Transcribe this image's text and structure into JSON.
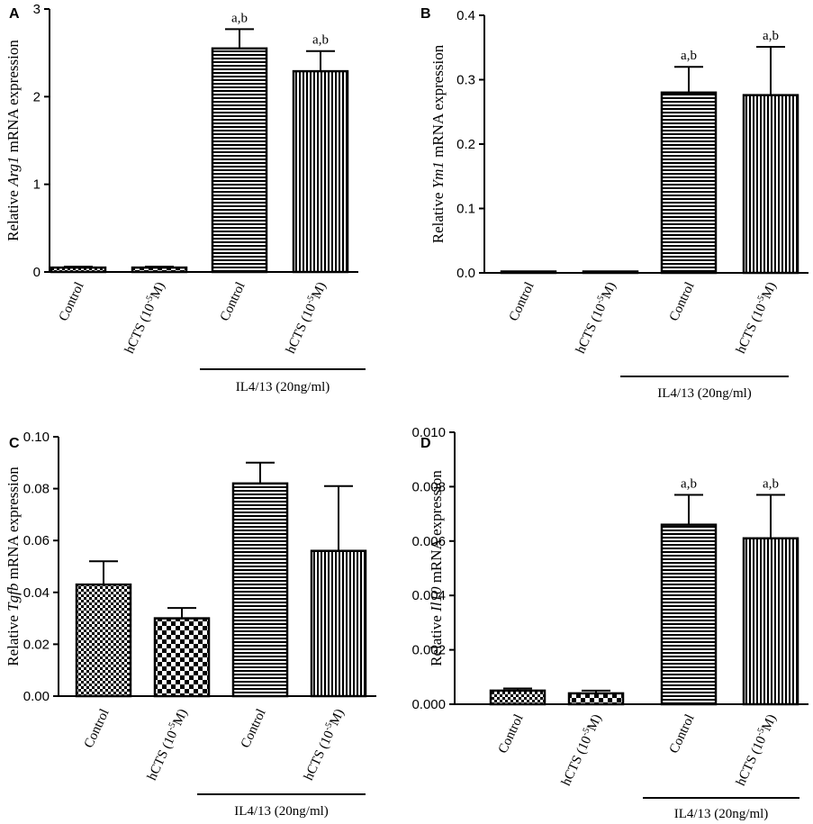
{
  "chart_data": [
    {
      "type": "bar",
      "panel_letter": "A",
      "ylabel_prefix": "Relative ",
      "ylabel_gene": "Arg1",
      "ylabel_suffix": " mRNA expression",
      "ylim": [
        0,
        3
      ],
      "yticks": [
        "0",
        "1",
        "2",
        "3"
      ],
      "yticks_values": [
        0,
        1,
        2,
        3
      ],
      "categories": [
        "Control",
        "hCTS (10",
        "Control",
        "hCTS (10"
      ],
      "category_sup": [
        "",
        "-5",
        "",
        "-5"
      ],
      "category_tail": [
        "",
        "M)",
        "",
        "M)"
      ],
      "values": [
        0.05,
        0.05,
        2.55,
        2.29
      ],
      "errors": [
        0.01,
        0.01,
        0.22,
        0.23
      ],
      "annotations": [
        "",
        "",
        "a,b",
        "a,b"
      ],
      "patterns": [
        "checker-fine",
        "checker",
        "hlines",
        "vlines"
      ],
      "group_label": "IL4/13 (20ng/ml)"
    },
    {
      "type": "bar",
      "panel_letter": "B",
      "ylabel_prefix": "Relative ",
      "ylabel_gene": "Ym1",
      "ylabel_suffix": " mRNA expression",
      "ylim": [
        0,
        0.4
      ],
      "yticks": [
        "0.0",
        "0.1",
        "0.2",
        "0.3",
        "0.4"
      ],
      "yticks_values": [
        0,
        0.1,
        0.2,
        0.3,
        0.4
      ],
      "categories": [
        "Control",
        "hCTS (10",
        "Control",
        "hCTS (10"
      ],
      "category_sup": [
        "",
        "-5",
        "",
        "-5"
      ],
      "category_tail": [
        "",
        "M)",
        "",
        "M)"
      ],
      "values": [
        0.0005,
        0.0005,
        0.28,
        0.276
      ],
      "errors": [
        0,
        0,
        0.04,
        0.075
      ],
      "annotations": [
        "",
        "",
        "a,b",
        "a,b"
      ],
      "patterns": [
        "checker-fine",
        "checker",
        "hlines",
        "vlines"
      ],
      "group_label": "IL4/13 (20ng/ml)"
    },
    {
      "type": "bar",
      "panel_letter": "C",
      "ylabel_prefix": "Relative ",
      "ylabel_gene": "Tgfb",
      "ylabel_suffix": " mRNA expression",
      "ylim": [
        0,
        0.1
      ],
      "yticks": [
        "0.00",
        "0.02",
        "0.04",
        "0.06",
        "0.08",
        "0.10"
      ],
      "yticks_values": [
        0,
        0.02,
        0.04,
        0.06,
        0.08,
        0.1
      ],
      "categories": [
        "Control",
        "hCTS (10",
        "Control",
        "hCTS (10"
      ],
      "category_sup": [
        "",
        "-5",
        "",
        "-5"
      ],
      "category_tail": [
        "",
        "M)",
        "",
        "M)"
      ],
      "values": [
        0.043,
        0.03,
        0.082,
        0.056
      ],
      "errors": [
        0.009,
        0.004,
        0.008,
        0.025
      ],
      "annotations": [
        "",
        "",
        "",
        ""
      ],
      "patterns": [
        "checker-fine",
        "checker",
        "hlines",
        "vlines"
      ],
      "group_label": "IL4/13 (20ng/ml)"
    },
    {
      "type": "bar",
      "panel_letter": "D",
      "ylabel_prefix": "Relative ",
      "ylabel_gene": "Il10",
      "ylabel_suffix": " mRNA expression",
      "ylim": [
        0,
        0.01
      ],
      "yticks": [
        "0.000",
        "0.002",
        "0.004",
        "0.006",
        "0.008",
        "0.010"
      ],
      "yticks_values": [
        0,
        0.002,
        0.004,
        0.006,
        0.008,
        0.01
      ],
      "categories": [
        "Control",
        "hCTS (10",
        "Control",
        "hCTS (10"
      ],
      "category_sup": [
        "",
        "-5",
        "",
        "-5"
      ],
      "category_tail": [
        "",
        "M)",
        "",
        "M)"
      ],
      "values": [
        0.0005,
        0.0004,
        0.0066,
        0.0061
      ],
      "errors": [
        8e-05,
        0.0001,
        0.0011,
        0.0016
      ],
      "annotations": [
        "",
        "",
        "a,b",
        "a,b"
      ],
      "patterns": [
        "checker-fine",
        "checker",
        "hlines",
        "vlines"
      ],
      "group_label": "IL4/13 (20ng/ml)"
    }
  ]
}
